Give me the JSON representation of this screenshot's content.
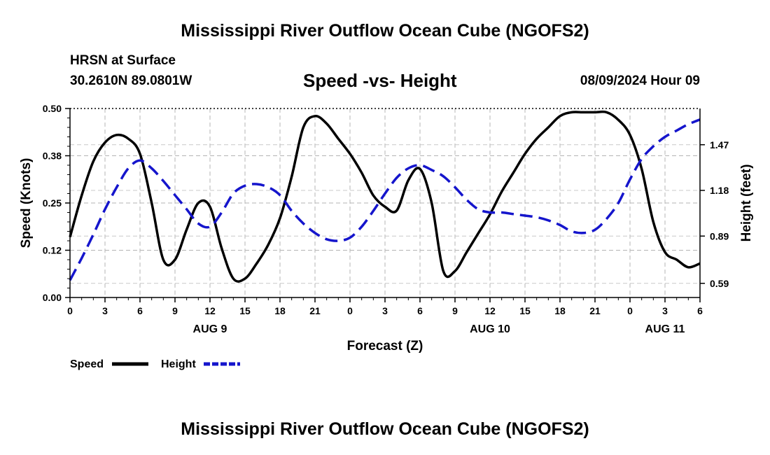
{
  "header": {
    "main_title": "Mississippi River Outflow Ocean Cube (NGOFS2)",
    "station": "HRSN at Surface",
    "coordinates": "30.2610N  89.0801W",
    "subtitle": "Speed -vs- Height",
    "datetime": "08/09/2024 Hour 09",
    "footer_title": "Mississippi River Outflow Ocean Cube (NGOFS2)"
  },
  "chart_data": {
    "type": "line",
    "title": "Speed -vs- Height",
    "xlabel": "Forecast (Z)",
    "ylabel": "Speed (Knots)",
    "y2label": "Height (feet)",
    "xlim": [
      0,
      54
    ],
    "ylim": [
      0,
      0.5
    ],
    "y2lim": [
      0.5,
      1.7
    ],
    "grid": true,
    "x_tick_labels": [
      "0",
      "3",
      "6",
      "9",
      "12",
      "15",
      "18",
      "21",
      "0",
      "3",
      "6",
      "9",
      "12",
      "15",
      "18",
      "21",
      "0",
      "3",
      "6"
    ],
    "y_ticks": [
      {
        "value": 0.0,
        "label": "0.00"
      },
      {
        "value": 0.125,
        "label": "0.12"
      },
      {
        "value": 0.25,
        "label": "0.25"
      },
      {
        "value": 0.375,
        "label": "0.38"
      },
      {
        "value": 0.5,
        "label": "0.50"
      }
    ],
    "y2_ticks": [
      {
        "value": 0.59,
        "label": "0.59"
      },
      {
        "value": 0.89,
        "label": "0.89"
      },
      {
        "value": 1.18,
        "label": "1.18"
      },
      {
        "value": 1.47,
        "label": "1.47"
      }
    ],
    "day_labels": [
      {
        "x": 12,
        "label": "AUG 9"
      },
      {
        "x": 36,
        "label": "AUG 10"
      },
      {
        "x": 51,
        "label": "AUG 11"
      }
    ],
    "series": [
      {
        "name": "Speed",
        "color": "#000000",
        "dash": "solid",
        "axis": "left",
        "x": [
          0,
          1,
          2,
          3,
          4,
          5,
          6,
          7,
          8,
          9,
          10,
          11,
          12,
          13,
          14,
          15,
          16,
          17,
          18,
          19,
          20,
          21,
          22,
          23,
          24,
          25,
          26,
          27,
          28,
          29,
          30,
          31,
          32,
          33,
          34,
          35,
          36,
          37,
          38,
          39,
          40,
          41,
          42,
          43,
          44,
          45,
          46,
          47,
          48,
          49,
          50,
          51,
          52,
          53,
          54
        ],
        "values": [
          0.16,
          0.27,
          0.36,
          0.41,
          0.43,
          0.42,
          0.38,
          0.25,
          0.1,
          0.1,
          0.18,
          0.25,
          0.24,
          0.13,
          0.05,
          0.05,
          0.09,
          0.14,
          0.21,
          0.32,
          0.45,
          0.48,
          0.46,
          0.42,
          0.38,
          0.33,
          0.27,
          0.24,
          0.23,
          0.31,
          0.34,
          0.25,
          0.07,
          0.07,
          0.12,
          0.17,
          0.22,
          0.28,
          0.33,
          0.38,
          0.42,
          0.45,
          0.48,
          0.49,
          0.49,
          0.49,
          0.49,
          0.47,
          0.43,
          0.34,
          0.2,
          0.12,
          0.1,
          0.08,
          0.09
        ]
      },
      {
        "name": "Height",
        "color": "#1515cc",
        "dash": "dashed",
        "axis": "right",
        "x": [
          0,
          1,
          2,
          3,
          4,
          5,
          6,
          7,
          8,
          9,
          10,
          11,
          12,
          13,
          14,
          15,
          16,
          17,
          18,
          19,
          20,
          21,
          22,
          23,
          24,
          25,
          26,
          27,
          28,
          29,
          30,
          31,
          32,
          33,
          34,
          35,
          36,
          37,
          38,
          39,
          40,
          41,
          42,
          43,
          44,
          45,
          46,
          47,
          48,
          49,
          50,
          51,
          52,
          53,
          54
        ],
        "values": [
          0.61,
          0.75,
          0.9,
          1.06,
          1.2,
          1.32,
          1.37,
          1.32,
          1.24,
          1.15,
          1.06,
          0.97,
          0.95,
          1.04,
          1.16,
          1.21,
          1.22,
          1.2,
          1.15,
          1.05,
          0.97,
          0.91,
          0.87,
          0.86,
          0.88,
          0.95,
          1.05,
          1.16,
          1.26,
          1.32,
          1.34,
          1.31,
          1.27,
          1.2,
          1.12,
          1.06,
          1.04,
          1.04,
          1.03,
          1.02,
          1.01,
          0.99,
          0.96,
          0.92,
          0.91,
          0.93,
          1.0,
          1.1,
          1.25,
          1.38,
          1.46,
          1.52,
          1.56,
          1.6,
          1.63
        ]
      }
    ]
  },
  "legend": {
    "items": [
      {
        "label": "Speed",
        "color": "#000000",
        "dash": "solid"
      },
      {
        "label": "Height",
        "color": "#1515cc",
        "dash": "dashed"
      }
    ]
  }
}
